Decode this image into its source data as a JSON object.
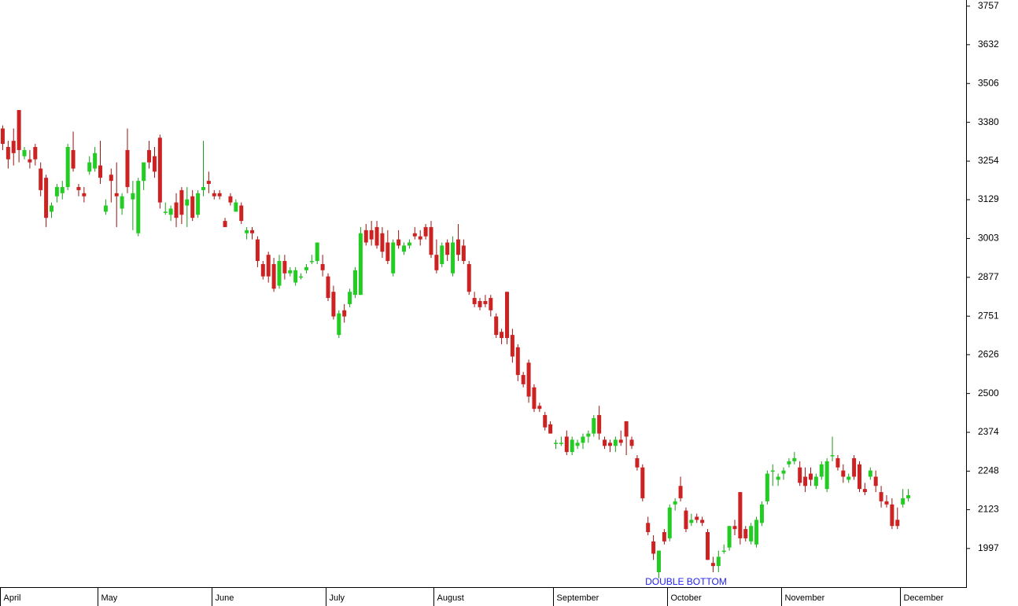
{
  "chart_data": {
    "type": "candlestick",
    "up_color": "#22cc22",
    "down_color": "#cc2222",
    "ylim": [
      1869,
      3777
    ],
    "yticks": [
      1997,
      2123,
      2248,
      2374,
      2500,
      2626,
      2751,
      2877,
      3003,
      3129,
      3254,
      3380,
      3506,
      3632,
      3757
    ],
    "annotation": "DOUBLE BOTTOM",
    "months": [
      {
        "name": "April",
        "candles": [
          [
            3360,
            3370,
            3290,
            3310
          ],
          [
            3300,
            3320,
            3230,
            3260
          ],
          [
            3320,
            3360,
            3240,
            3280
          ],
          [
            3420,
            3420,
            3250,
            3290
          ],
          [
            3270,
            3300,
            3260,
            3290
          ],
          [
            3260,
            3290,
            3230,
            3250
          ],
          [
            3300,
            3310,
            3240,
            3260
          ],
          [
            3230,
            3250,
            3140,
            3160
          ],
          [
            3200,
            3210,
            3040,
            3070
          ],
          [
            3090,
            3120,
            3070,
            3110
          ],
          [
            3140,
            3180,
            3120,
            3170
          ],
          [
            3150,
            3190,
            3130,
            3170
          ],
          [
            3170,
            3310,
            3160,
            3300
          ],
          [
            3290,
            3350,
            3220,
            3230
          ],
          [
            3170,
            3180,
            3140,
            3160
          ],
          [
            3150,
            3170,
            3120,
            3140
          ],
          [
            3220,
            3270,
            3210,
            3250
          ],
          [
            3230,
            3300,
            3220,
            3280
          ]
        ]
      },
      {
        "name": "May",
        "candles": [
          [
            3240,
            3320,
            3180,
            3200
          ],
          [
            3090,
            3130,
            3080,
            3110
          ],
          [
            3210,
            3230,
            3120,
            3190
          ],
          [
            3150,
            3250,
            3040,
            3140
          ],
          [
            3100,
            3150,
            3080,
            3140
          ],
          [
            3290,
            3360,
            3150,
            3170
          ],
          [
            3130,
            3190,
            3030,
            3150
          ],
          [
            3020,
            3200,
            3010,
            3190
          ],
          [
            3190,
            3250,
            3160,
            3250
          ],
          [
            3290,
            3320,
            3230,
            3250
          ],
          [
            3270,
            3300,
            3200,
            3220
          ],
          [
            3330,
            3340,
            3100,
            3120
          ],
          [
            3090,
            3120,
            3080,
            3090
          ],
          [
            3080,
            3110,
            3060,
            3100
          ],
          [
            3120,
            3150,
            3040,
            3070
          ],
          [
            3160,
            3170,
            3050,
            3080
          ],
          [
            3110,
            3170,
            3040,
            3130
          ],
          [
            3140,
            3160,
            3060,
            3070
          ],
          [
            3080,
            3160,
            3070,
            3150
          ],
          [
            3160,
            3320,
            3140,
            3170
          ],
          [
            3190,
            3220,
            3150,
            3180
          ]
        ]
      },
      {
        "name": "June",
        "candles": [
          [
            3150,
            3160,
            3130,
            3140
          ],
          [
            3150,
            3160,
            3130,
            3140
          ],
          [
            3060,
            3070,
            3040,
            3040
          ],
          [
            3140,
            3150,
            3110,
            3120
          ],
          [
            3090,
            3130,
            3090,
            3120
          ],
          [
            3110,
            3120,
            3050,
            3060
          ],
          [
            3020,
            3040,
            3000,
            3030
          ],
          [
            3030,
            3040,
            3000,
            3020
          ],
          [
            3000,
            3010,
            2910,
            2930
          ],
          [
            2920,
            2930,
            2870,
            2880
          ],
          [
            2950,
            2960,
            2860,
            2880
          ],
          [
            2920,
            2940,
            2830,
            2840
          ],
          [
            2850,
            2950,
            2840,
            2930
          ],
          [
            2930,
            2950,
            2870,
            2890
          ],
          [
            2890,
            2910,
            2880,
            2900
          ],
          [
            2860,
            2910,
            2850,
            2900
          ],
          [
            2880,
            2890,
            2870,
            2880
          ],
          [
            2900,
            2920,
            2890,
            2910
          ],
          [
            2930,
            2950,
            2920,
            2930
          ],
          [
            2930,
            2990,
            2920,
            2990
          ],
          [
            2920,
            2950,
            2880,
            2900
          ]
        ]
      },
      {
        "name": "July",
        "candles": [
          [
            2880,
            2890,
            2800,
            2810
          ],
          [
            2830,
            2850,
            2740,
            2750
          ],
          [
            2690,
            2770,
            2680,
            2760
          ],
          [
            2770,
            2790,
            2730,
            2750
          ],
          [
            2790,
            2840,
            2780,
            2830
          ],
          [
            2820,
            2910,
            2810,
            2900
          ],
          [
            2820,
            3040,
            2820,
            3020
          ],
          [
            3030,
            3050,
            2980,
            2990
          ],
          [
            3030,
            3060,
            2980,
            3000
          ],
          [
            3040,
            3060,
            2970,
            2980
          ],
          [
            3020,
            3040,
            2940,
            2960
          ],
          [
            2990,
            3030,
            2920,
            2930
          ],
          [
            2890,
            3000,
            2880,
            2990
          ],
          [
            3000,
            3030,
            2970,
            2980
          ],
          [
            2960,
            2990,
            2950,
            2980
          ],
          [
            2980,
            3000,
            2970,
            2990
          ],
          [
            3020,
            3040,
            3000,
            3010
          ],
          [
            3010,
            3030,
            2980,
            3000
          ],
          [
            3040,
            3050,
            3000,
            3010
          ],
          [
            3040,
            3060,
            2940,
            2950
          ]
        ]
      },
      {
        "name": "August",
        "candles": [
          [
            2950,
            3000,
            2890,
            2900
          ],
          [
            2920,
            2990,
            2910,
            2980
          ],
          [
            2990,
            3000,
            2930,
            2950
          ],
          [
            2890,
            3010,
            2880,
            2990
          ],
          [
            3000,
            3050,
            2930,
            2950
          ],
          [
            2980,
            3000,
            2920,
            2930
          ],
          [
            2920,
            2930,
            2820,
            2830
          ],
          [
            2810,
            2830,
            2780,
            2790
          ],
          [
            2800,
            2810,
            2770,
            2780
          ],
          [
            2800,
            2820,
            2780,
            2790
          ],
          [
            2810,
            2820,
            2750,
            2770
          ],
          [
            2750,
            2760,
            2680,
            2690
          ],
          [
            2700,
            2710,
            2660,
            2680
          ],
          [
            2830,
            2830,
            2660,
            2680
          ],
          [
            2690,
            2710,
            2600,
            2620
          ],
          [
            2650,
            2660,
            2540,
            2560
          ],
          [
            2560,
            2570,
            2520,
            2530
          ],
          [
            2600,
            2610,
            2470,
            2490
          ],
          [
            2520,
            2530,
            2440,
            2450
          ],
          [
            2460,
            2470,
            2440,
            2450
          ],
          [
            2430,
            2440,
            2380,
            2390
          ],
          [
            2400,
            2410,
            2370,
            2370
          ]
        ]
      },
      {
        "name": "September",
        "candles": [
          [
            2340,
            2350,
            2320,
            2340
          ],
          [
            2340,
            2360,
            2330,
            2340
          ],
          [
            2360,
            2380,
            2300,
            2310
          ],
          [
            2310,
            2360,
            2300,
            2350
          ],
          [
            2330,
            2350,
            2320,
            2340
          ],
          [
            2340,
            2370,
            2320,
            2360
          ],
          [
            2360,
            2380,
            2340,
            2370
          ],
          [
            2370,
            2430,
            2360,
            2420
          ],
          [
            2430,
            2460,
            2350,
            2370
          ],
          [
            2350,
            2360,
            2320,
            2330
          ],
          [
            2340,
            2350,
            2310,
            2330
          ],
          [
            2330,
            2360,
            2310,
            2350
          ],
          [
            2350,
            2380,
            2330,
            2340
          ],
          [
            2410,
            2410,
            2300,
            2360
          ],
          [
            2350,
            2360,
            2320,
            2330
          ],
          [
            2290,
            2300,
            2250,
            2260
          ],
          [
            2260,
            2270,
            2150,
            2160
          ],
          [
            2080,
            2100,
            2040,
            2050
          ],
          [
            2020,
            2040,
            1960,
            1980
          ],
          [
            1920,
            1990,
            1900,
            1990
          ],
          [
            2050,
            2060,
            2010,
            2020
          ]
        ]
      },
      {
        "name": "October",
        "candles": [
          [
            2030,
            2140,
            2020,
            2130
          ],
          [
            2140,
            2160,
            2120,
            2150
          ],
          [
            2200,
            2230,
            2150,
            2160
          ],
          [
            2120,
            2130,
            2050,
            2060
          ],
          [
            2080,
            2110,
            2070,
            2090
          ],
          [
            2100,
            2110,
            2080,
            2090
          ],
          [
            2090,
            2100,
            2070,
            2080
          ],
          [
            2050,
            2060,
            1960,
            1960
          ],
          [
            1950,
            1970,
            1920,
            1940
          ],
          [
            1940,
            1990,
            1920,
            1970
          ],
          [
            1990,
            2010,
            1980,
            1990
          ],
          [
            2000,
            2070,
            1990,
            2070
          ],
          [
            2070,
            2090,
            2040,
            2060
          ],
          [
            2180,
            2180,
            2010,
            2030
          ],
          [
            2060,
            2070,
            2020,
            2030
          ],
          [
            2020,
            2080,
            2010,
            2070
          ],
          [
            2010,
            2100,
            2000,
            2090
          ],
          [
            2080,
            2150,
            2070,
            2140
          ],
          [
            2150,
            2250,
            2140,
            2240
          ],
          [
            2250,
            2270,
            2200,
            2250
          ],
          [
            2220,
            2240,
            2200,
            2230
          ]
        ]
      },
      {
        "name": "November",
        "candles": [
          [
            2240,
            2260,
            2220,
            2250
          ],
          [
            2270,
            2290,
            2260,
            2280
          ],
          [
            2280,
            2310,
            2270,
            2290
          ],
          [
            2260,
            2280,
            2200,
            2210
          ],
          [
            2230,
            2260,
            2180,
            2200
          ],
          [
            2240,
            2260,
            2200,
            2220
          ],
          [
            2200,
            2240,
            2190,
            2230
          ],
          [
            2230,
            2280,
            2220,
            2270
          ],
          [
            2190,
            2290,
            2180,
            2280
          ],
          [
            2300,
            2360,
            2280,
            2300
          ],
          [
            2290,
            2300,
            2250,
            2260
          ],
          [
            2250,
            2270,
            2210,
            2230
          ],
          [
            2220,
            2240,
            2210,
            2230
          ],
          [
            2290,
            2300,
            2220,
            2230
          ],
          [
            2270,
            2280,
            2180,
            2190
          ],
          [
            2190,
            2210,
            2170,
            2180
          ],
          [
            2230,
            2260,
            2220,
            2250
          ],
          [
            2230,
            2250,
            2180,
            2200
          ],
          [
            2180,
            2200,
            2130,
            2150
          ],
          [
            2150,
            2170,
            2130,
            2140
          ],
          [
            2140,
            2160,
            2060,
            2070
          ],
          [
            2090,
            2130,
            2060,
            2070
          ]
        ]
      },
      {
        "name": "December",
        "candles": [
          [
            2140,
            2190,
            2130,
            2160
          ],
          [
            2160,
            2190,
            2150,
            2170
          ]
        ]
      }
    ]
  }
}
